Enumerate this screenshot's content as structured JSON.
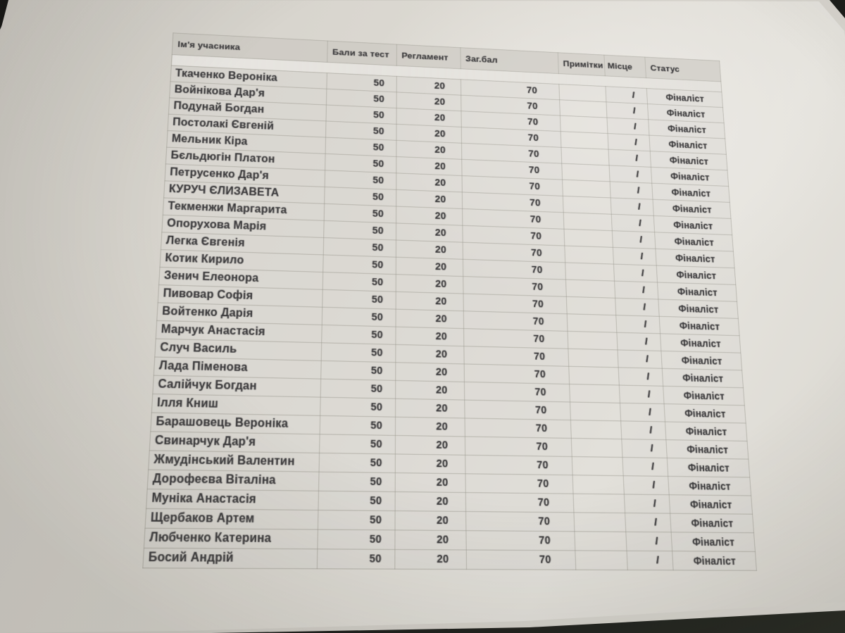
{
  "colors": {
    "background_surface": "#1a1b18",
    "paper": "#dedbd4",
    "text": "#3b3a3c",
    "gridline": "#98958d",
    "header_fill": "#c9c6c0"
  },
  "table": {
    "headers": [
      "Ім'я учасника",
      "Бали за тест",
      "Регламент",
      "Заг.бал",
      "Примітки",
      "Місце",
      "Статус"
    ],
    "rows": [
      {
        "name": "Ткаченко Вероніка",
        "test": "50",
        "regulation": "20",
        "total": "70",
        "notes": "",
        "place": "І",
        "status": "Фіналіст"
      },
      {
        "name": "Войнікова Дар'я",
        "test": "50",
        "regulation": "20",
        "total": "70",
        "notes": "",
        "place": "І",
        "status": "Фіналіст"
      },
      {
        "name": "Подунай Богдан",
        "test": "50",
        "regulation": "20",
        "total": "70",
        "notes": "",
        "place": "І",
        "status": "Фіналіст"
      },
      {
        "name": "Постолакі Євгеній",
        "test": "50",
        "regulation": "20",
        "total": "70",
        "notes": "",
        "place": "І",
        "status": "Фіналіст"
      },
      {
        "name": "Мельник Кіра",
        "test": "50",
        "regulation": "20",
        "total": "70",
        "notes": "",
        "place": "І",
        "status": "Фіналіст"
      },
      {
        "name": "Бєльдюгін Платон",
        "test": "50",
        "regulation": "20",
        "total": "70",
        "notes": "",
        "place": "І",
        "status": "Фіналіст"
      },
      {
        "name": "Петрусенко Дар'я",
        "test": "50",
        "regulation": "20",
        "total": "70",
        "notes": "",
        "place": "І",
        "status": "Фіналіст"
      },
      {
        "name": "КУРУЧ ЄЛИЗАВЕТА",
        "test": "50",
        "regulation": "20",
        "total": "70",
        "notes": "",
        "place": "І",
        "status": "Фіналіст"
      },
      {
        "name": "Текменжи Маргарита",
        "test": "50",
        "regulation": "20",
        "total": "70",
        "notes": "",
        "place": "І",
        "status": "Фіналіст"
      },
      {
        "name": "Опорухова Марія",
        "test": "50",
        "regulation": "20",
        "total": "70",
        "notes": "",
        "place": "І",
        "status": "Фіналіст"
      },
      {
        "name": "Легка Євгенія",
        "test": "50",
        "regulation": "20",
        "total": "70",
        "notes": "",
        "place": "І",
        "status": "Фіналіст"
      },
      {
        "name": "Котик Кирило",
        "test": "50",
        "regulation": "20",
        "total": "70",
        "notes": "",
        "place": "І",
        "status": "Фіналіст"
      },
      {
        "name": "Зенич Елеонора",
        "test": "50",
        "regulation": "20",
        "total": "70",
        "notes": "",
        "place": "І",
        "status": "Фіналіст"
      },
      {
        "name": "Пивовар Софія",
        "test": "50",
        "regulation": "20",
        "total": "70",
        "notes": "",
        "place": "І",
        "status": "Фіналіст"
      },
      {
        "name": "Войтенко Дарія",
        "test": "50",
        "regulation": "20",
        "total": "70",
        "notes": "",
        "place": "І",
        "status": "Фіналіст"
      },
      {
        "name": "Марчук Анастасія",
        "test": "50",
        "regulation": "20",
        "total": "70",
        "notes": "",
        "place": "І",
        "status": "Фіналіст"
      },
      {
        "name": "Случ Василь",
        "test": "50",
        "regulation": "20",
        "total": "70",
        "notes": "",
        "place": "І",
        "status": "Фіналіст"
      },
      {
        "name": "Лада Піменова",
        "test": "50",
        "regulation": "20",
        "total": "70",
        "notes": "",
        "place": "І",
        "status": "Фіналіст"
      },
      {
        "name": "Салійчук Богдан",
        "test": "50",
        "regulation": "20",
        "total": "70",
        "notes": "",
        "place": "І",
        "status": "Фіналіст"
      },
      {
        "name": "Ілля Книш",
        "test": "50",
        "regulation": "20",
        "total": "70",
        "notes": "",
        "place": "І",
        "status": "Фіналіст"
      },
      {
        "name": "Барашовець Вероніка",
        "test": "50",
        "regulation": "20",
        "total": "70",
        "notes": "",
        "place": "І",
        "status": "Фіналіст"
      },
      {
        "name": "Свинарчук Дар'я",
        "test": "50",
        "regulation": "20",
        "total": "70",
        "notes": "",
        "place": "І",
        "status": "Фіналіст"
      },
      {
        "name": "Жмудінський Валентин",
        "test": "50",
        "regulation": "20",
        "total": "70",
        "notes": "",
        "place": "І",
        "status": "Фіналіст"
      },
      {
        "name": "Дорофеєва Віталіна",
        "test": "50",
        "regulation": "20",
        "total": "70",
        "notes": "",
        "place": "І",
        "status": "Фіналіст"
      },
      {
        "name": "Муніка Анастасія",
        "test": "50",
        "regulation": "20",
        "total": "70",
        "notes": "",
        "place": "І",
        "status": "Фіналіст"
      },
      {
        "name": "Щербаков Артем",
        "test": "50",
        "regulation": "20",
        "total": "70",
        "notes": "",
        "place": "І",
        "status": "Фіналіст"
      },
      {
        "name": "Любченко Катерина",
        "test": "50",
        "regulation": "20",
        "total": "70",
        "notes": "",
        "place": "І",
        "status": "Фіналіст"
      },
      {
        "name": "Босий Андрій",
        "test": "50",
        "regulation": "20",
        "total": "70",
        "notes": "",
        "place": "І",
        "status": "Фіналіст"
      }
    ]
  }
}
